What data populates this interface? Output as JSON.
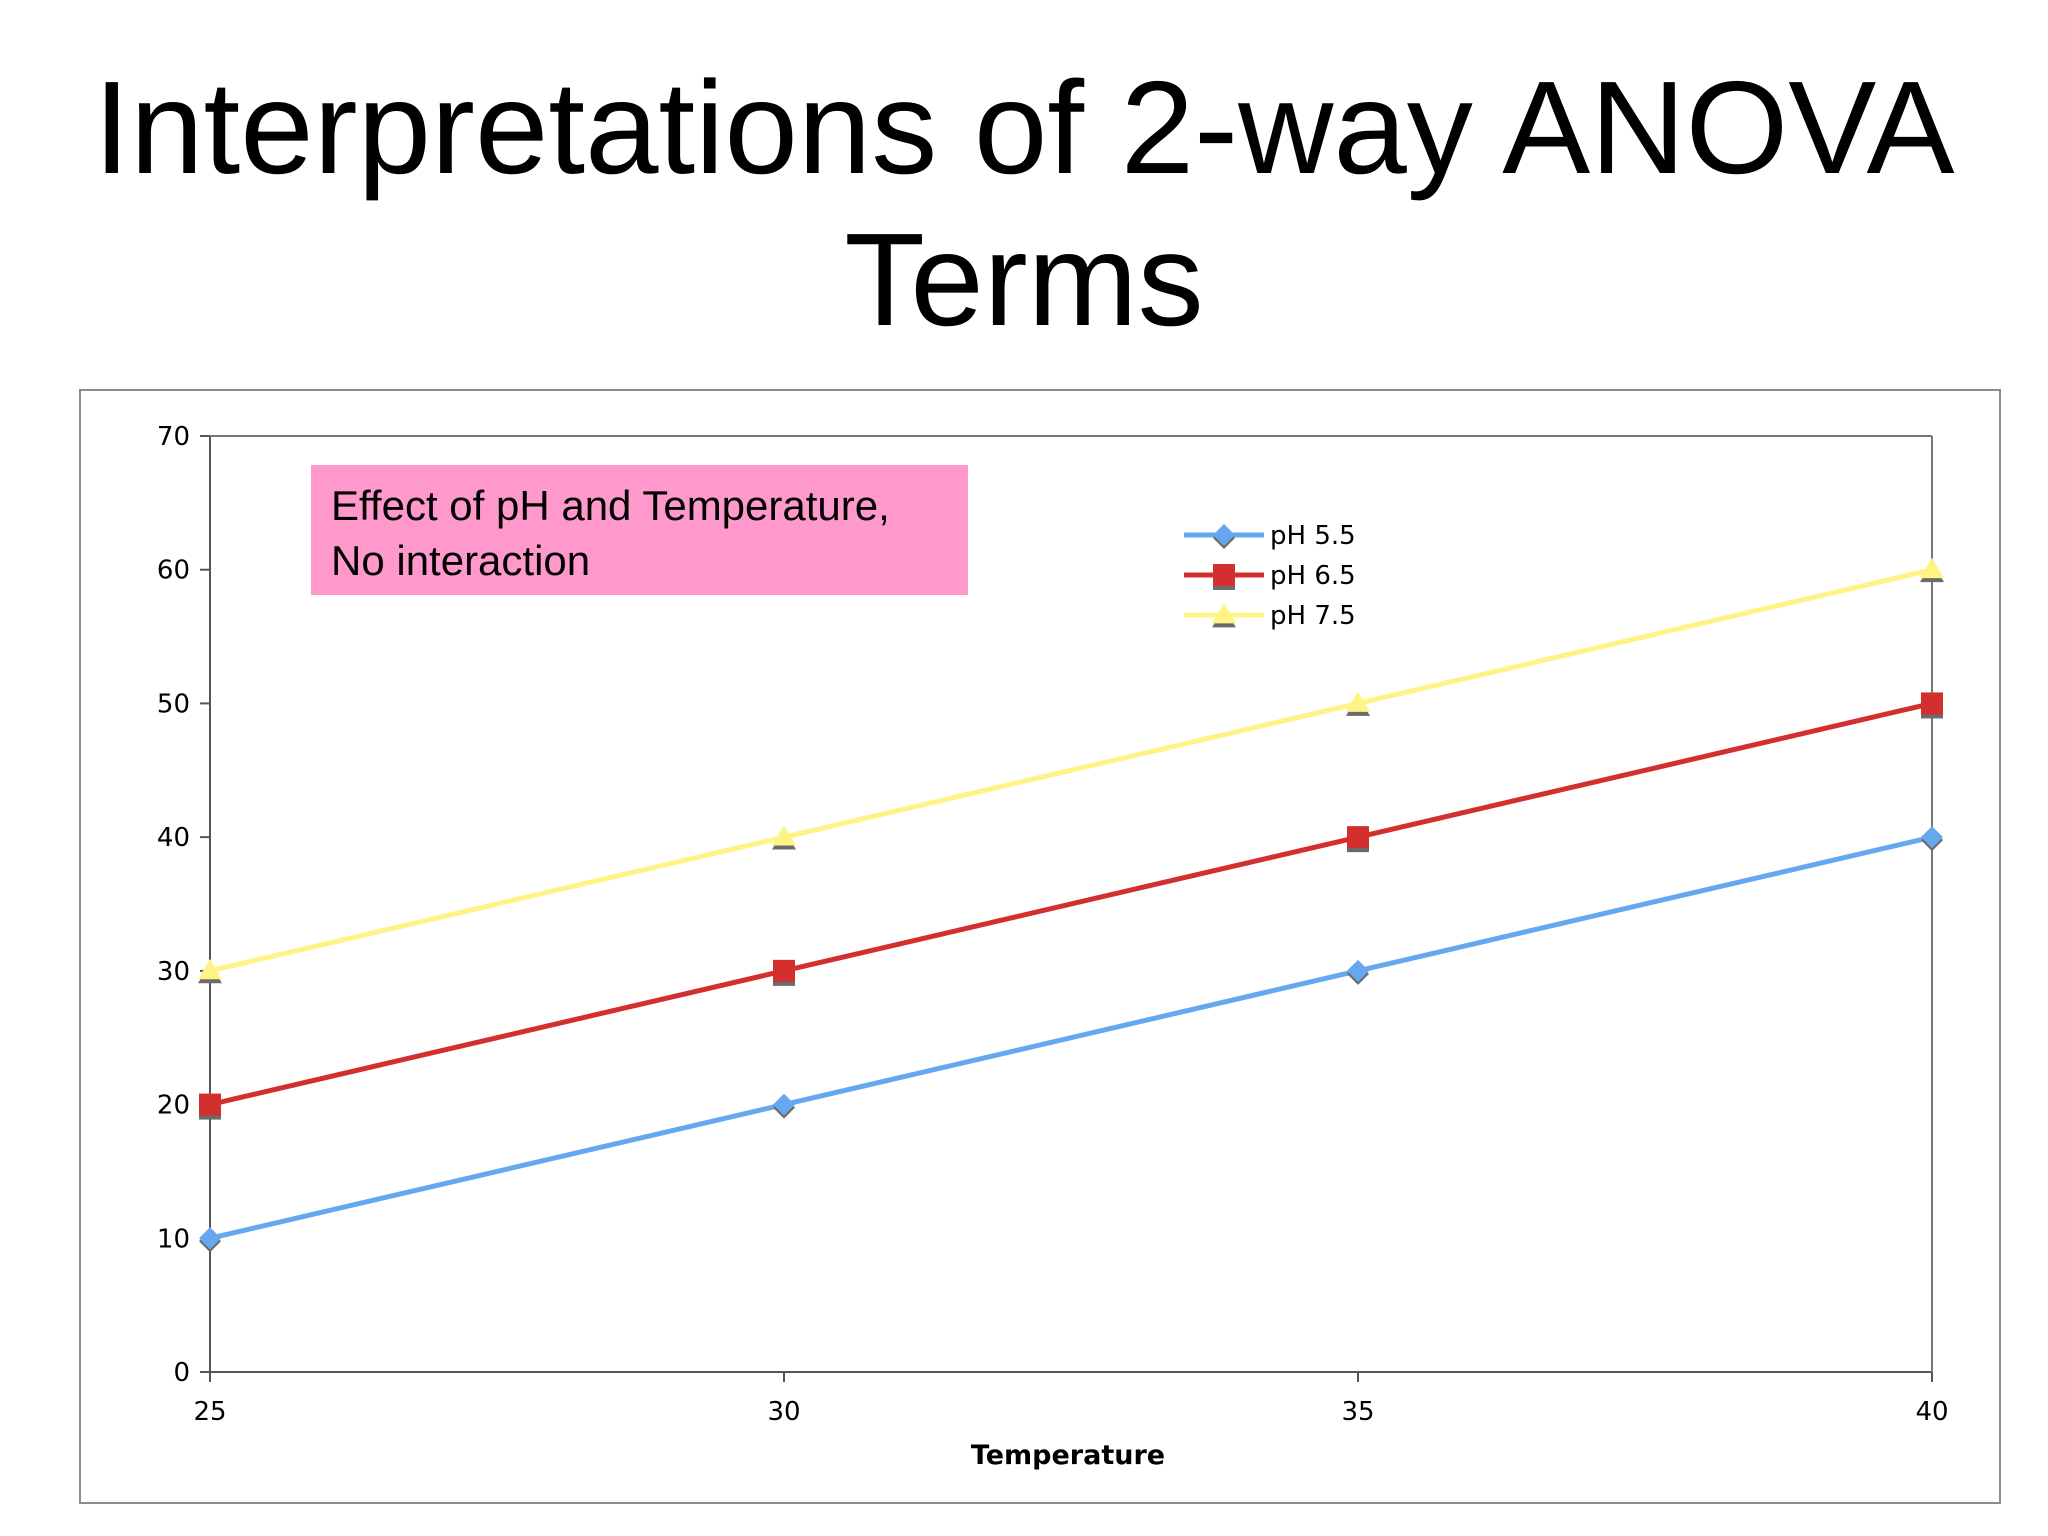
{
  "slide": {
    "title_line1": "Interpretations of 2-way ANOVA",
    "title_line2": "Terms"
  },
  "annotation": {
    "line1": "Effect of pH and Temperature,",
    "line2": "No interaction",
    "background": "#FF99CC"
  },
  "chart_data": {
    "type": "line",
    "title": "",
    "xlabel": "Temperature",
    "ylabel": "",
    "x": [
      25,
      30,
      35,
      40
    ],
    "x_ticks": [
      "25",
      "30",
      "35",
      "40"
    ],
    "ylim": [
      0,
      70
    ],
    "y_ticks": [
      "0",
      "10",
      "20",
      "30",
      "40",
      "50",
      "60",
      "70"
    ],
    "grid": false,
    "legend_position": "top-center",
    "series": [
      {
        "name": "pH 5.5",
        "values": [
          10,
          20,
          30,
          40
        ],
        "color": "#66A8F0",
        "marker": "diamond"
      },
      {
        "name": "pH 6.5",
        "values": [
          20,
          30,
          40,
          50
        ],
        "color": "#D32F2F",
        "marker": "square"
      },
      {
        "name": "pH 7.5",
        "values": [
          30,
          40,
          50,
          60
        ],
        "color": "#FFF385",
        "marker": "triangle"
      }
    ]
  }
}
